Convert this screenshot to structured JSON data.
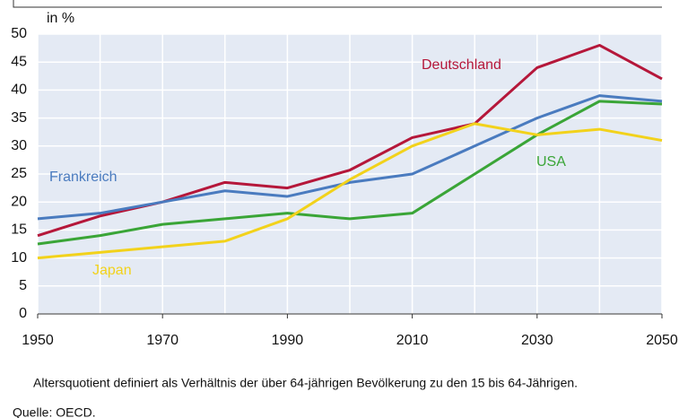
{
  "chart_data": {
    "type": "line",
    "y_unit_label": "in %",
    "x": [
      1950,
      1960,
      1970,
      1980,
      1990,
      2000,
      2010,
      2020,
      2030,
      2040,
      2050
    ],
    "series": [
      {
        "name": "Deutschland",
        "color": "#b5173a",
        "values": [
          14,
          17.5,
          20,
          23.5,
          22.5,
          25.7,
          31.5,
          34,
          44,
          48,
          42
        ]
      },
      {
        "name": "Frankreich",
        "color": "#4a7bbf",
        "values": [
          17,
          18,
          20,
          22,
          21,
          23.5,
          25,
          30,
          35,
          39,
          38
        ]
      },
      {
        "name": "USA",
        "color": "#3aa537",
        "values": [
          12.5,
          14,
          16,
          17,
          18,
          17,
          18,
          25,
          32,
          38,
          37.5
        ]
      },
      {
        "name": "Japan",
        "color": "#f2d21b",
        "values": [
          10,
          11,
          12,
          13,
          17,
          24,
          30,
          34,
          32,
          33,
          31
        ]
      }
    ],
    "xlim": [
      1950,
      2050
    ],
    "xticks": [
      1950,
      1970,
      1990,
      2010,
      2030,
      2050
    ],
    "ylim": [
      0,
      50
    ],
    "yticks": [
      0,
      5,
      10,
      15,
      20,
      25,
      30,
      35,
      40,
      45,
      50
    ],
    "grid": true,
    "note": "Altersquotient definiert als Verhältnis der über 64-jährigen Bevölkerung zu den 15 bis 64-Jährigen.",
    "source": "Quelle: OECD."
  }
}
